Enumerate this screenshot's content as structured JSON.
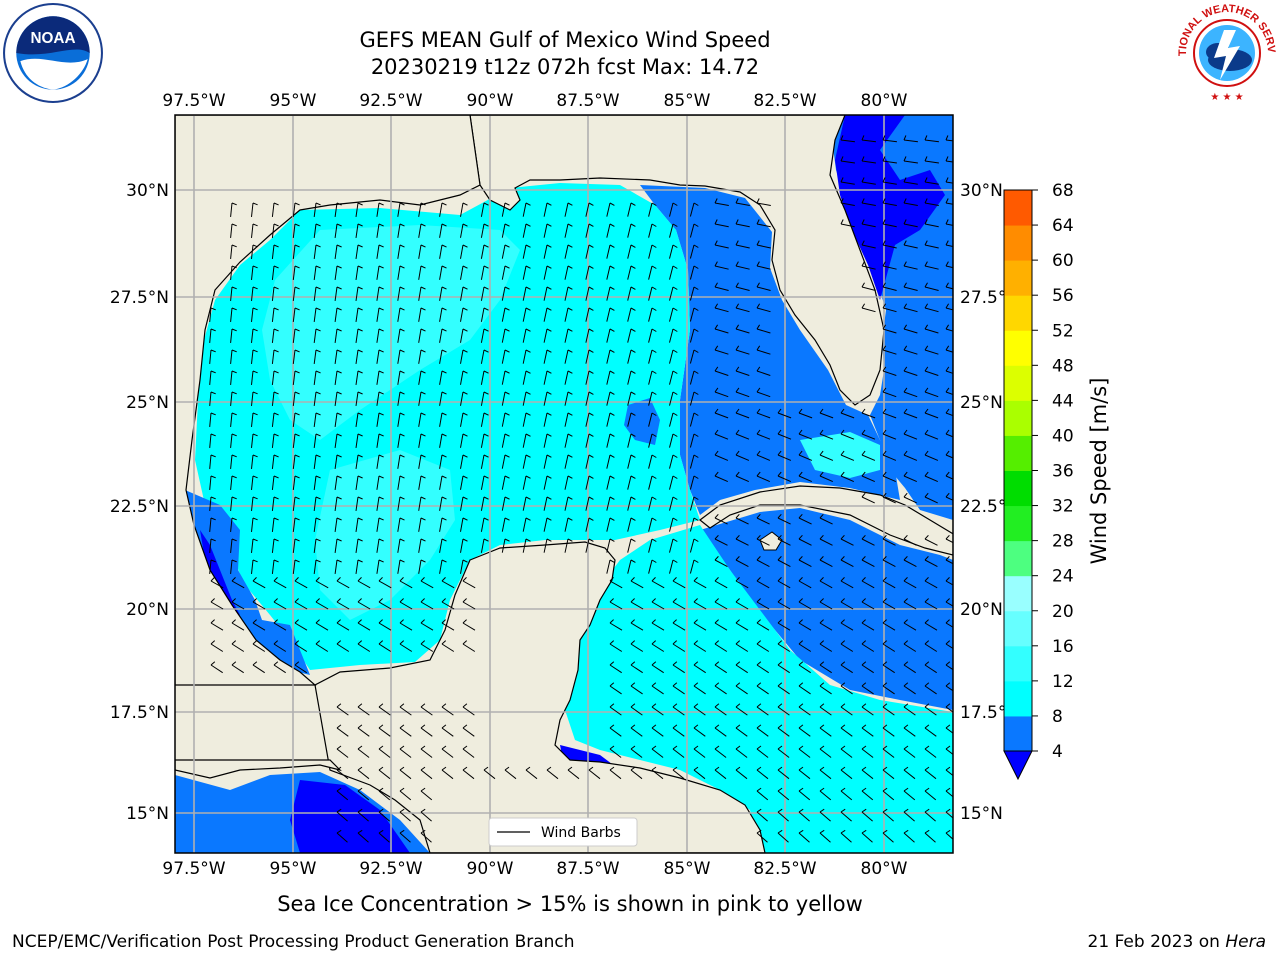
{
  "title": {
    "line1": "GEFS MEAN Gulf of Mexico Wind Speed",
    "line2": "20230219 t12z 072h fcst   Max: 14.72"
  },
  "logos": {
    "left": "NOAA",
    "right": "NATIONAL WEATHER SERVICE"
  },
  "axes": {
    "lon_labels": [
      "97.5°W",
      "95°W",
      "92.5°W",
      "90°W",
      "87.5°W",
      "85°W",
      "82.5°W",
      "80°W"
    ],
    "lon_values": [
      -97.5,
      -95,
      -92.5,
      -90,
      -87.5,
      -85,
      -82.5,
      -80
    ],
    "lat_labels": [
      "30°N",
      "27.5°N",
      "25°N",
      "22.5°N",
      "20°N",
      "17.5°N",
      "15°N"
    ],
    "lat_values": [
      30,
      27.5,
      25,
      22.5,
      20,
      17.5,
      15
    ],
    "lon_range": [
      -98,
      -78.2
    ],
    "lat_range": [
      14,
      31.6
    ],
    "grid": true
  },
  "legend": {
    "label": "Wind Barbs",
    "location": "lower-center"
  },
  "colorbar": {
    "label": "Wind Speed [m/s]",
    "ticks": [
      "4",
      "8",
      "12",
      "16",
      "20",
      "24",
      "28",
      "32",
      "36",
      "40",
      "44",
      "48",
      "52",
      "56",
      "60",
      "64",
      "68"
    ],
    "colors": [
      "#0a78ff",
      "#00ffff",
      "#33ffff",
      "#66ffff",
      "#99ffff",
      "#4dff80",
      "#22ee22",
      "#00dd00",
      "#55ee00",
      "#aaff00",
      "#dcff00",
      "#ffff00",
      "#ffd700",
      "#ffb000",
      "#ff8c00",
      "#ff5a00",
      "#ff2a00",
      "#ff0000"
    ],
    "under_color": "#0000ff",
    "extend": "min"
  },
  "palette": {
    "land": "#efedde",
    "ocean_4_8": "#0a78ff",
    "ocean_8_12": "#00ffff",
    "ocean_12_16": "#33ffff",
    "ocean_lt4": "#0000ff",
    "grid": "#b0b0b0"
  },
  "footer": {
    "caption": "Sea Ice Concentration > 15% is shown in pink to yellow",
    "left": "NCEP/EMC/Verification Post Processing Product Generation Branch",
    "right_date": "21 Feb 2023 on ",
    "right_host": "Hera"
  }
}
